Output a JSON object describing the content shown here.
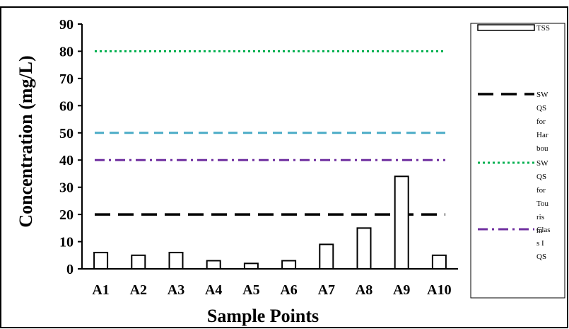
{
  "chart_data": {
    "type": "bar",
    "xlabel": "Sample Points",
    "ylabel": "Concentration (mg/L)",
    "ylim": [
      0,
      90
    ],
    "yticks": [
      0,
      10,
      20,
      30,
      40,
      50,
      60,
      70,
      80,
      90
    ],
    "categories": [
      "A1",
      "A2",
      "A3",
      "A4",
      "A5",
      "A6",
      "A7",
      "A8",
      "A9",
      "A10"
    ],
    "series": [
      {
        "name": "TSS",
        "values": [
          6,
          5,
          6,
          3,
          2,
          3,
          9,
          15,
          34,
          5
        ],
        "color": "#ffffff",
        "stroke": "#000000"
      }
    ],
    "reference_lines": [
      {
        "value": 20,
        "color": "#000000",
        "style": "long-dash",
        "legend_lines": [
          "SW",
          "QS",
          "for",
          "Har",
          "bou"
        ]
      },
      {
        "value": 80,
        "color": "#00b050",
        "style": "dotted",
        "legend_lines": [
          "SW",
          "QS",
          "for",
          "Tou",
          "ris",
          "m"
        ]
      },
      {
        "value": 50,
        "color": "#4bacc6",
        "style": "dash",
        "legend_lines": []
      },
      {
        "value": 40,
        "color": "#7030a0",
        "style": "dash-dot",
        "legend_lines": [
          "Clas",
          "s I",
          "QS"
        ]
      }
    ],
    "grid": false,
    "legend_position": "right"
  }
}
